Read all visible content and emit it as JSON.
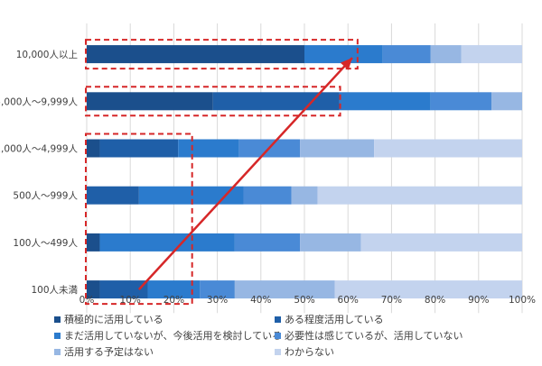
{
  "chart_data": {
    "type": "bar",
    "orientation": "horizontal",
    "stacked": true,
    "title": "",
    "xlabel": "",
    "ylabel": "",
    "xlim": [
      0,
      100
    ],
    "x_ticks": [
      "0%",
      "10%",
      "20%",
      "30%",
      "40%",
      "50%",
      "60%",
      "70%",
      "80%",
      "90%",
      "100%"
    ],
    "grid": true,
    "legend_position": "bottom",
    "categories": [
      "10,000人以上",
      "5,000人～9,999人",
      "1,000人～4,999人",
      "500人～999人",
      "100人～499人",
      "100人未満"
    ],
    "series": [
      {
        "name": "積極的に活用している",
        "color": "#1b4f8c",
        "values": [
          50,
          29,
          3,
          0,
          3,
          3
        ]
      },
      {
        "name": "ある程度活用している",
        "color": "#1f5fa8",
        "values": [
          0,
          29,
          18,
          12,
          0,
          11
        ]
      },
      {
        "name": "まだ活用していないが、今後活用を検討している",
        "color": "#2b7bcd",
        "values": [
          18,
          21,
          14,
          24,
          31,
          12
        ]
      },
      {
        "name": "必要性は感じているが、活用していない",
        "color": "#4a8ad6",
        "values": [
          11,
          14,
          14,
          11,
          15,
          8
        ]
      },
      {
        "name": "活用する予定はない",
        "color": "#97b7e3",
        "values": [
          7,
          7,
          17,
          6,
          14,
          23
        ]
      },
      {
        "name": "わからない",
        "color": "#c3d3ee",
        "values": [
          14,
          0,
          34,
          47,
          37,
          43
        ]
      }
    ],
    "annotations": [
      {
        "type": "dashed-box",
        "color": "#d62728",
        "category_range": [
          "10,000人以上",
          "10,000人以上"
        ],
        "x_range": [
          0,
          62
        ]
      },
      {
        "type": "dashed-box",
        "color": "#d62728",
        "category_range": [
          "5,000人～9,999人",
          "5,000人～9,999人"
        ],
        "x_range": [
          0,
          58
        ]
      },
      {
        "type": "dashed-box",
        "color": "#d62728",
        "category_range": [
          "1,000人～4,999人",
          "100人未満"
        ],
        "x_range": [
          0,
          24
        ]
      },
      {
        "type": "arrow",
        "color": "#d62728",
        "from": [
          "100人未満",
          12
        ],
        "to": [
          "10,000人以上",
          61
        ]
      }
    ]
  }
}
